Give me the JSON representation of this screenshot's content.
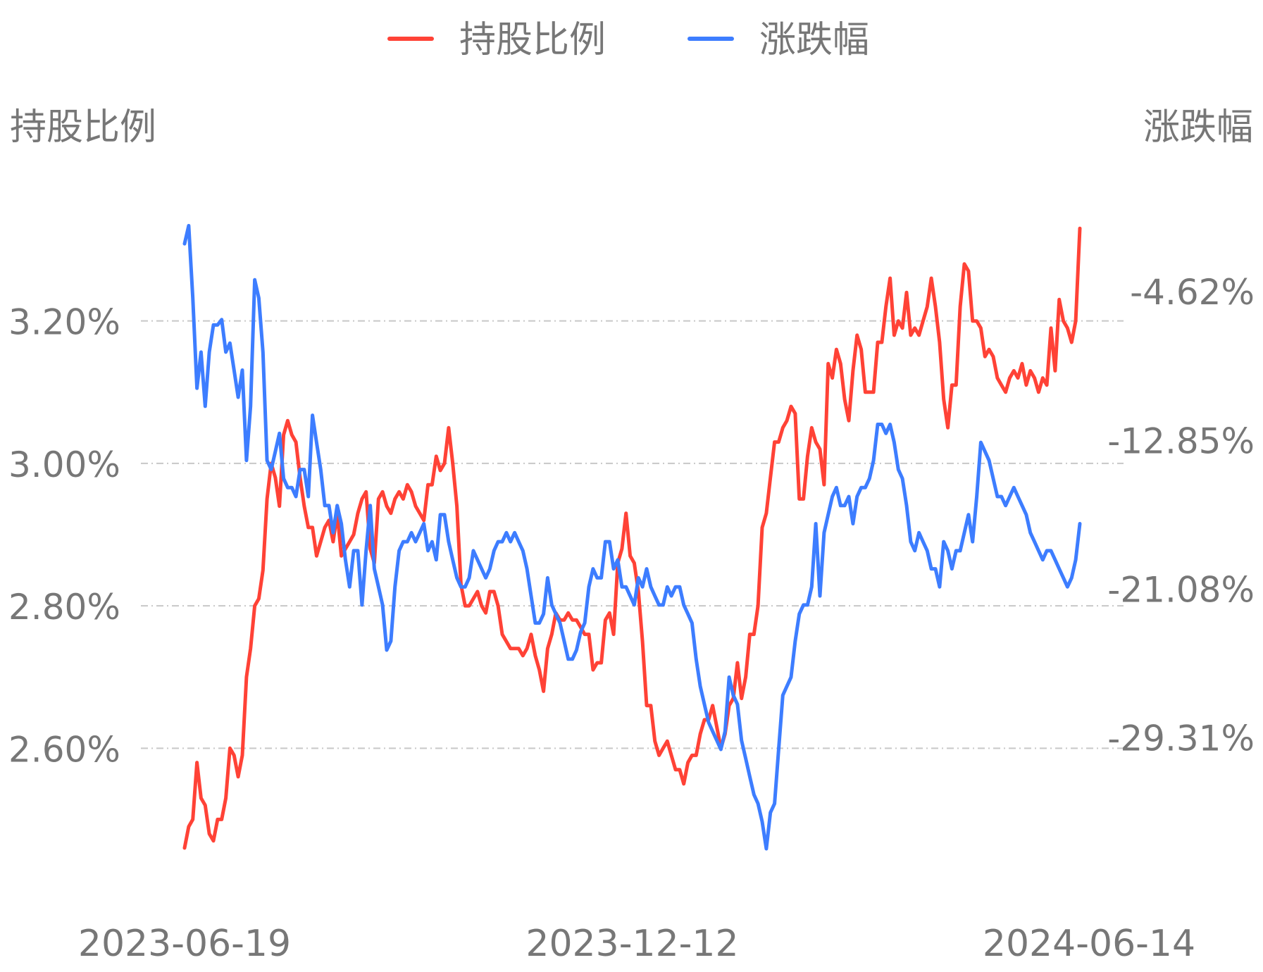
{
  "chart_data": {
    "type": "line",
    "legend": {
      "position": "top-center",
      "items": [
        "持股比例",
        "涨跌幅"
      ]
    },
    "y_left": {
      "label": "持股比例",
      "ticks": [
        "3.20%",
        "3.00%",
        "2.80%",
        "2.60%"
      ],
      "range": [
        2.45,
        3.35
      ]
    },
    "y_right": {
      "label": "涨跌幅",
      "ticks": [
        "-4.62%",
        "-12.85%",
        "-21.08%",
        "-29.31%"
      ],
      "range": [
        -35.85,
        -0.36
      ]
    },
    "x_ticks": [
      "2023-06-19",
      "2023-12-12",
      "2024-06-14"
    ],
    "grid": true,
    "colors": {
      "holding": "#ff4236",
      "change": "#3d7dff"
    },
    "series": [
      {
        "name": "持股比例",
        "color": "#ff4236",
        "axis": "left",
        "values": [
          2.46,
          2.49,
          2.5,
          2.58,
          2.53,
          2.52,
          2.48,
          2.47,
          2.5,
          2.5,
          2.53,
          2.6,
          2.59,
          2.56,
          2.59,
          2.7,
          2.74,
          2.8,
          2.81,
          2.85,
          2.95,
          3.0,
          2.98,
          2.94,
          3.04,
          3.06,
          3.04,
          3.03,
          2.98,
          2.94,
          2.91,
          2.91,
          2.87,
          2.89,
          2.91,
          2.92,
          2.89,
          2.93,
          2.87,
          2.88,
          2.89,
          2.9,
          2.93,
          2.95,
          2.96,
          2.88,
          2.86,
          2.95,
          2.96,
          2.94,
          2.93,
          2.95,
          2.96,
          2.95,
          2.97,
          2.96,
          2.94,
          2.93,
          2.92,
          2.97,
          2.97,
          3.01,
          2.99,
          3.0,
          3.05,
          3.0,
          2.94,
          2.83,
          2.8,
          2.8,
          2.81,
          2.82,
          2.8,
          2.79,
          2.82,
          2.82,
          2.8,
          2.76,
          2.75,
          2.74,
          2.74,
          2.74,
          2.73,
          2.74,
          2.76,
          2.73,
          2.71,
          2.68,
          2.74,
          2.76,
          2.79,
          2.78,
          2.78,
          2.79,
          2.78,
          2.78,
          2.77,
          2.76,
          2.76,
          2.71,
          2.72,
          2.72,
          2.78,
          2.79,
          2.76,
          2.86,
          2.88,
          2.93,
          2.87,
          2.86,
          2.82,
          2.75,
          2.66,
          2.66,
          2.61,
          2.59,
          2.6,
          2.61,
          2.59,
          2.57,
          2.57,
          2.55,
          2.58,
          2.59,
          2.59,
          2.62,
          2.64,
          2.64,
          2.66,
          2.63,
          2.6,
          2.62,
          2.66,
          2.67,
          2.72,
          2.67,
          2.7,
          2.76,
          2.76,
          2.8,
          2.91,
          2.93,
          2.98,
          3.03,
          3.03,
          3.05,
          3.06,
          3.08,
          3.07,
          2.95,
          2.95,
          3.01,
          3.05,
          3.03,
          3.02,
          2.97,
          3.14,
          3.12,
          3.16,
          3.14,
          3.09,
          3.06,
          3.13,
          3.18,
          3.16,
          3.1,
          3.1,
          3.1,
          3.17,
          3.17,
          3.22,
          3.26,
          3.18,
          3.2,
          3.19,
          3.24,
          3.18,
          3.19,
          3.18,
          3.2,
          3.22,
          3.26,
          3.22,
          3.17,
          3.09,
          3.05,
          3.11,
          3.11,
          3.22,
          3.28,
          3.27,
          3.2,
          3.2,
          3.19,
          3.15,
          3.16,
          3.15,
          3.12,
          3.11,
          3.1,
          3.12,
          3.13,
          3.12,
          3.14,
          3.11,
          3.13,
          3.12,
          3.1,
          3.12,
          3.11,
          3.19,
          3.13,
          3.23,
          3.2,
          3.19,
          3.17,
          3.2,
          3.33
        ]
      },
      {
        "name": "涨跌幅",
        "color": "#3d7dff",
        "axis": "right",
        "values": [
          -2.0,
          -1.0,
          -5.0,
          -10.0,
          -8.0,
          -11.0,
          -8.0,
          -6.5,
          -6.5,
          -6.2,
          -8.0,
          -7.5,
          -9.0,
          -10.5,
          -9.0,
          -14.0,
          -11.0,
          -4.0,
          -5.0,
          -8.0,
          -14.0,
          -14.5,
          -13.5,
          -12.5,
          -15.0,
          -15.5,
          -15.5,
          -16.0,
          -14.5,
          -14.5,
          -16.0,
          -11.5,
          -13.0,
          -14.5,
          -16.5,
          -16.5,
          -18.0,
          -16.5,
          -17.5,
          -19.5,
          -21.0,
          -19.0,
          -19.0,
          -22.0,
          -19.0,
          -16.5,
          -20.0,
          -21.0,
          -22.0,
          -24.5,
          -24.0,
          -21.0,
          -19.0,
          -18.5,
          -18.5,
          -18.0,
          -18.5,
          -18.0,
          -17.5,
          -19.0,
          -18.5,
          -19.5,
          -17.0,
          -17.0,
          -18.5,
          -19.5,
          -20.5,
          -21.0,
          -21.0,
          -20.5,
          -19.0,
          -19.5,
          -20.0,
          -20.5,
          -20.0,
          -19.0,
          -18.5,
          -18.5,
          -18.0,
          -18.5,
          -18.0,
          -18.5,
          -19.0,
          -20.0,
          -21.5,
          -23.0,
          -23.0,
          -22.5,
          -20.5,
          -22.0,
          -22.5,
          -23.0,
          -24.0,
          -25.0,
          -25.0,
          -24.5,
          -23.5,
          -23.0,
          -21.0,
          -20.0,
          -20.5,
          -20.5,
          -18.5,
          -18.5,
          -20.0,
          -19.5,
          -21.0,
          -21.0,
          -21.5,
          -22.0,
          -20.5,
          -21.0,
          -20.0,
          -21.0,
          -21.5,
          -22.0,
          -22.0,
          -21.0,
          -21.5,
          -21.0,
          -21.0,
          -22.0,
          -22.5,
          -23.0,
          -25.0,
          -26.5,
          -27.5,
          -28.5,
          -29.0,
          -29.5,
          -30.0,
          -29.0,
          -26.0,
          -27.0,
          -27.5,
          -29.5,
          -30.5,
          -31.5,
          -32.5,
          -33.0,
          -34.0,
          -35.5,
          -33.5,
          -33.0,
          -30.0,
          -27.0,
          -26.5,
          -26.0,
          -24.0,
          -22.5,
          -22.0,
          -22.0,
          -21.0,
          -17.5,
          -21.5,
          -18.0,
          -17.0,
          -16.0,
          -15.5,
          -16.5,
          -16.5,
          -16.0,
          -17.5,
          -16.0,
          -15.5,
          -15.5,
          -15.0,
          -14.0,
          -12.0,
          -12.0,
          -12.5,
          -12.0,
          -13.0,
          -14.5,
          -15.0,
          -16.5,
          -18.5,
          -19.0,
          -18.0,
          -18.5,
          -19.0,
          -20.0,
          -20.0,
          -21.0,
          -18.5,
          -19.0,
          -20.0,
          -19.0,
          -19.0,
          -18.0,
          -17.0,
          -18.5,
          -16.0,
          -13.0,
          -13.5,
          -14.0,
          -15.0,
          -16.0,
          -16.0,
          -16.5,
          -16.0,
          -15.5,
          -16.0,
          -16.5,
          -17.0,
          -18.0,
          -18.5,
          -19.0,
          -19.5,
          -19.0,
          -19.0,
          -19.5,
          -20.0,
          -20.5,
          -21.0,
          -20.5,
          -19.5,
          -17.5
        ]
      }
    ]
  }
}
